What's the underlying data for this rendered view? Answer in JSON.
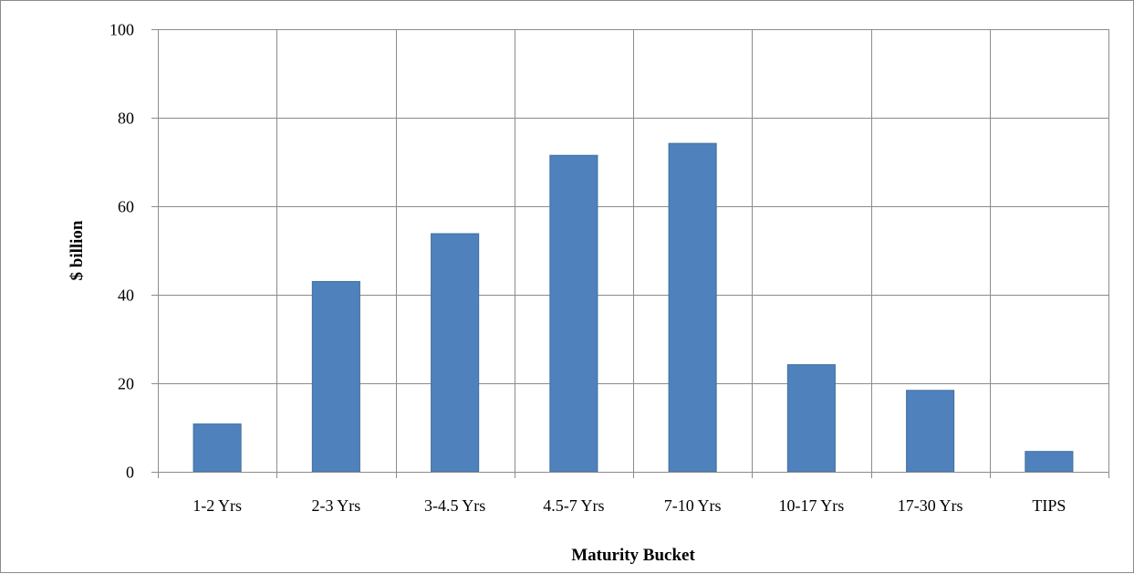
{
  "chart_data": {
    "type": "bar",
    "title": "",
    "xlabel": "Maturity Bucket",
    "ylabel": "$ billion",
    "categories": [
      "1-2 Yrs",
      "2-3 Yrs",
      "3-4.5 Yrs",
      "4.5-7 Yrs",
      "7-10 Yrs",
      "10-17 Yrs",
      "17-30 Yrs",
      "TIPS"
    ],
    "values": [
      10.8,
      43.0,
      53.8,
      71.5,
      74.2,
      24.2,
      18.4,
      4.6
    ],
    "ylim": [
      0,
      100
    ],
    "yticks": [
      0,
      20,
      40,
      60,
      80,
      100
    ],
    "grid": true,
    "legend": "none",
    "colors": {
      "bar_fill": "#4f81bd",
      "bar_stroke": "#41719c",
      "grid": "#8c8c8c",
      "axis": "#8c8c8c"
    }
  }
}
